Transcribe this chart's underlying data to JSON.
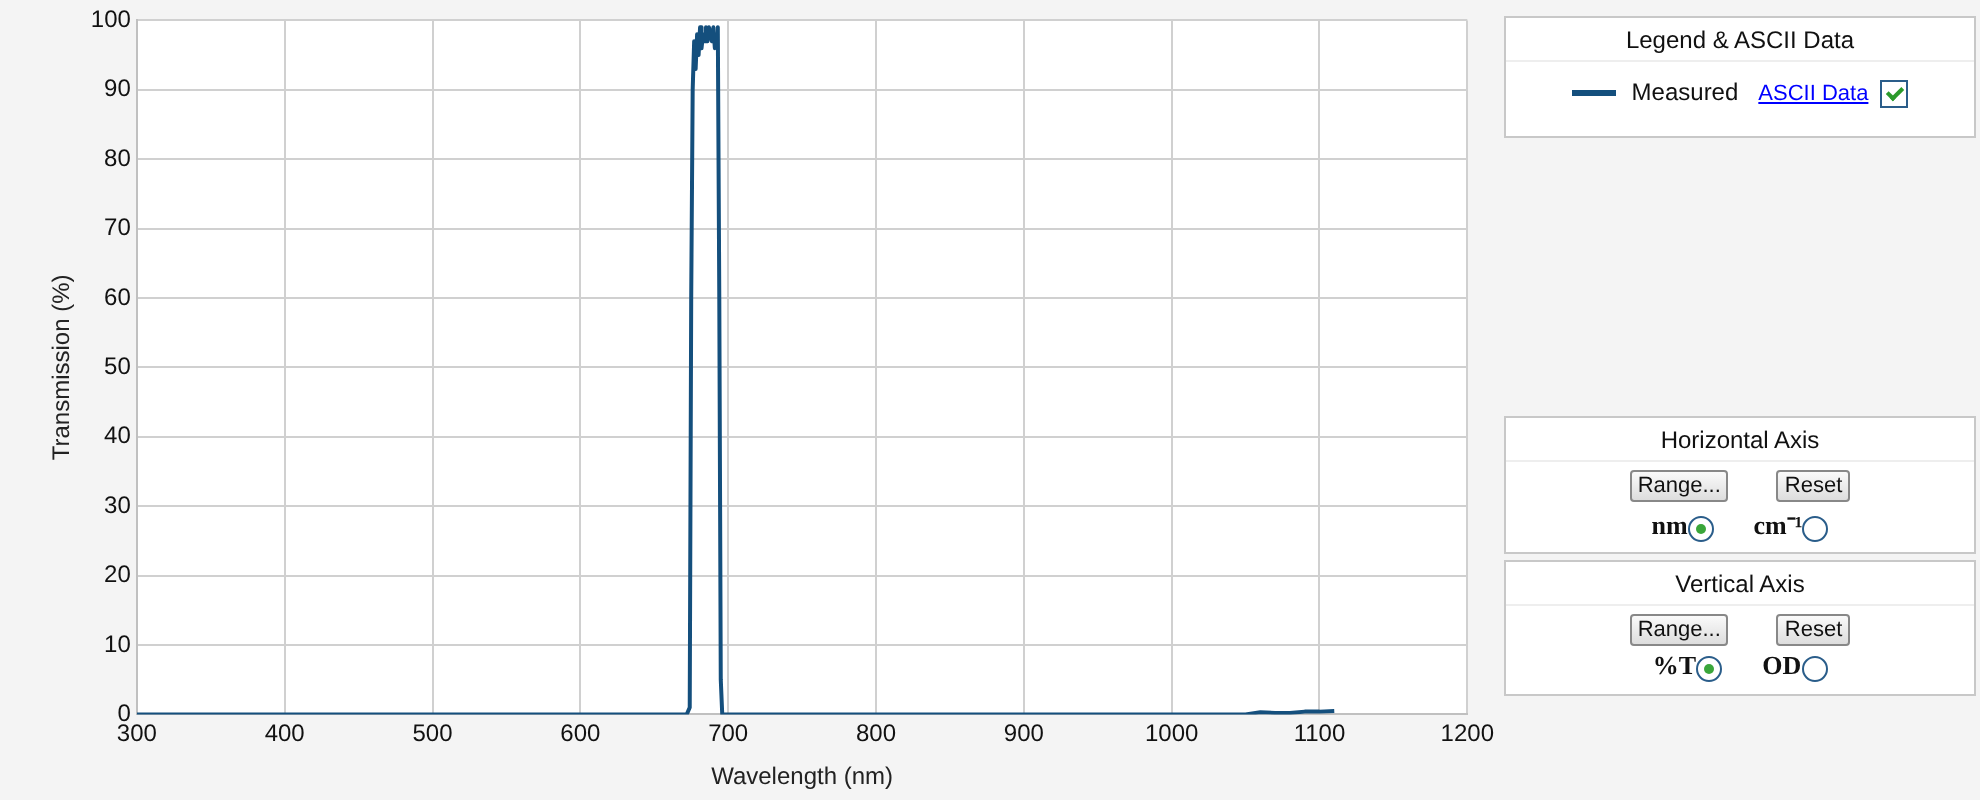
{
  "chart_data": {
    "type": "line",
    "xlabel": "Wavelength (nm)",
    "ylabel": "Transmission (%)",
    "legend_title": "Legend & ASCII Data",
    "annotations": [
      "ASCII Data",
      "Horizontal Axis",
      "Range...",
      "Reset",
      "nm",
      "cm⁻¹",
      "Vertical Axis",
      "Range...",
      "Reset",
      "%T",
      "OD"
    ],
    "xlim": [
      300,
      1200
    ],
    "xticks": [
      300,
      400,
      500,
      600,
      700,
      800,
      900,
      1000,
      1100,
      1200
    ],
    "ylim": [
      0,
      100
    ],
    "yticks": [
      0,
      10,
      20,
      30,
      40,
      50,
      60,
      70,
      80,
      90,
      100
    ],
    "grid": true,
    "legend": "top right",
    "marker": "none",
    "line_style": "solid",
    "series": [
      {
        "name": "Measured",
        "color": "#144f7d",
        "x": [
          300,
          672,
          674,
          675,
          676,
          677,
          678,
          679,
          680,
          681,
          682,
          683,
          684,
          685,
          686,
          687,
          688,
          689,
          690,
          691,
          692,
          693,
          694,
          695,
          696,
          1050,
          1060,
          1070,
          1080,
          1090,
          1100,
          1110
        ],
        "values": [
          0,
          0,
          1,
          60,
          90,
          97,
          93,
          98,
          95,
          99,
          96,
          98,
          97,
          99,
          97,
          99,
          98,
          97,
          99,
          96,
          98,
          99,
          60,
          5,
          0,
          0,
          0.3,
          0.2,
          0.2,
          0.4,
          0.4,
          0.5
        ]
      }
    ]
  }
}
